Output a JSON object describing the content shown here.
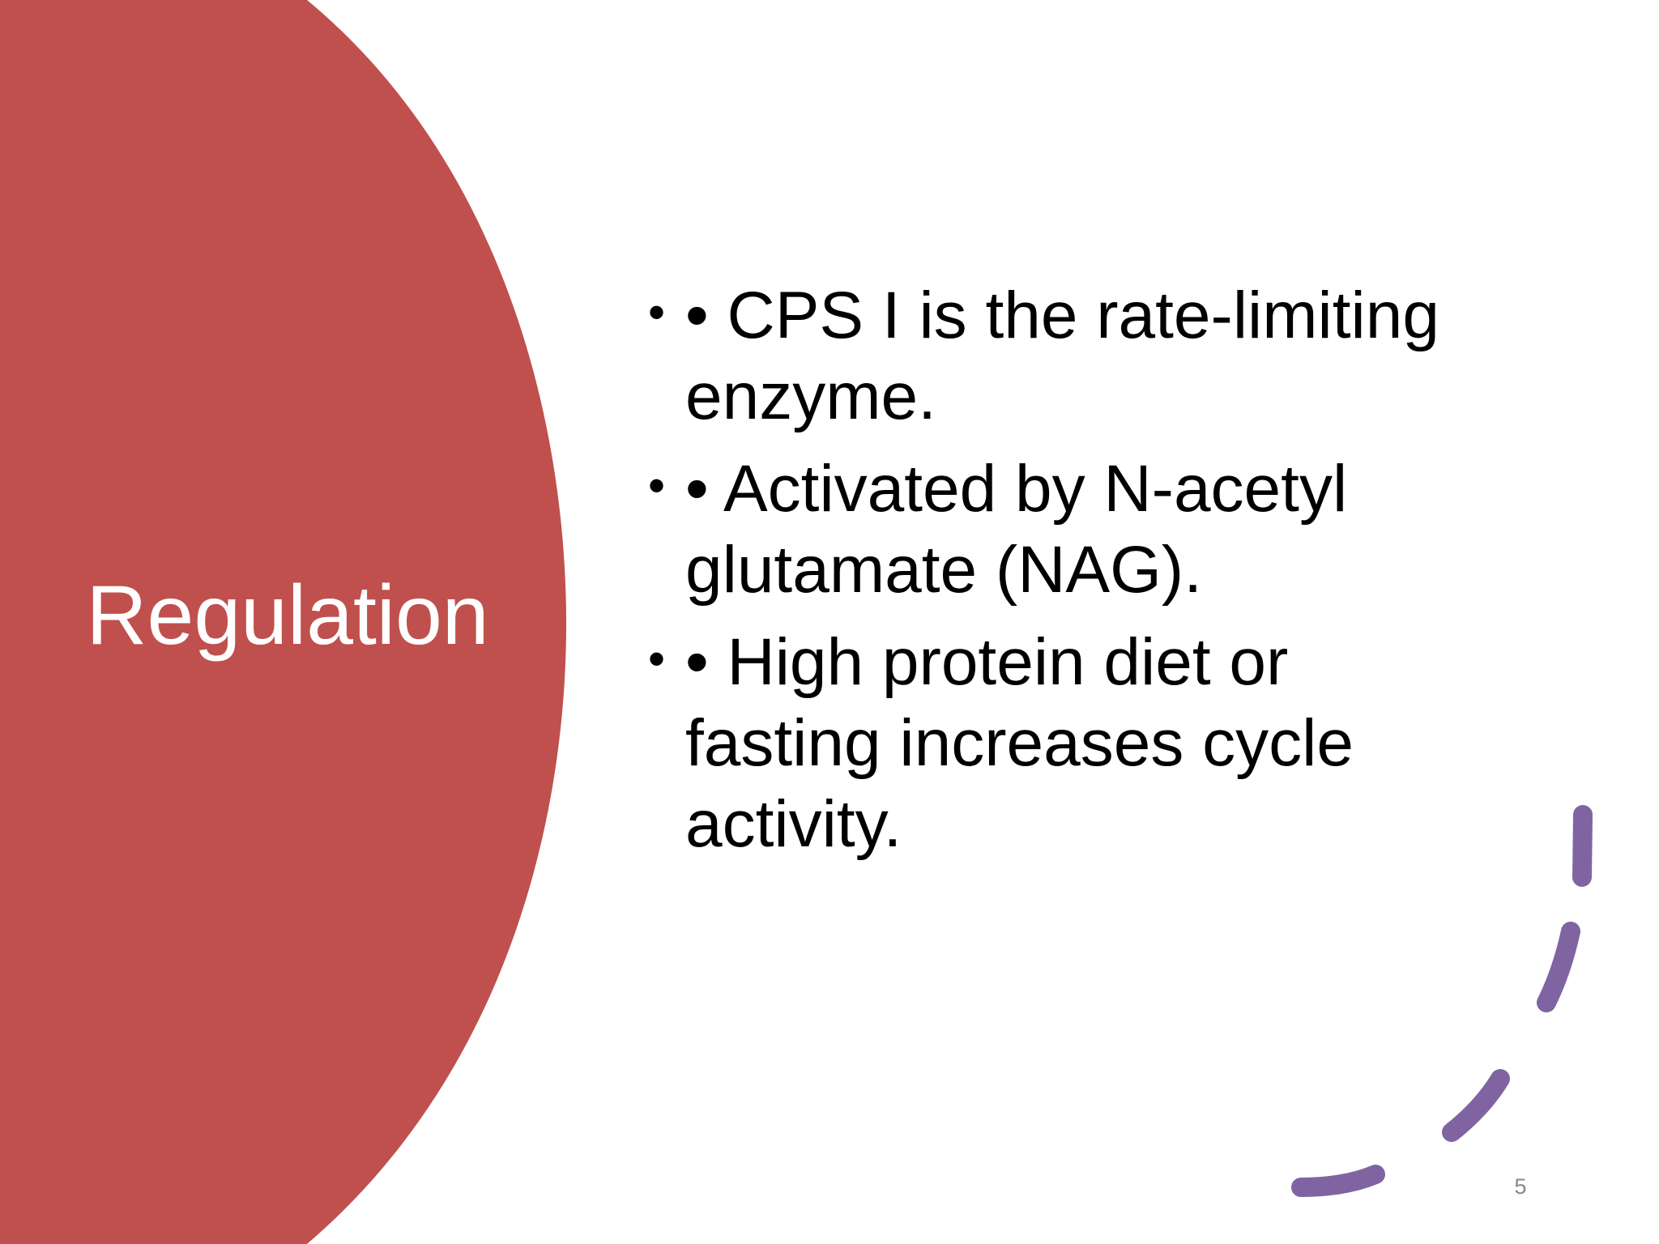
{
  "slide": {
    "title": "Regulation",
    "bullets": [
      "• CPS I is the rate-limiting enzyme.",
      "• Activated by N-acetyl glutamate (NAG).",
      "• High protein diet or fasting increases cycle activity."
    ],
    "page_number": "5"
  }
}
